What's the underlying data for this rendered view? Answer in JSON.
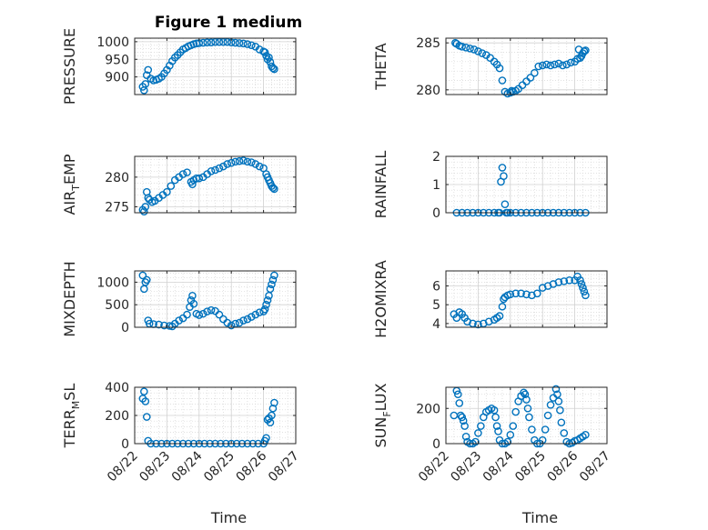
{
  "figure": {
    "title": "Figure 1 medium",
    "marker_color": "#0072BD",
    "background": "#ffffff"
  },
  "chart_data": [
    {
      "type": "scatter",
      "ylabel": "PRESSURE",
      "xlabel": "",
      "xlim": [
        "08/22",
        "08/27"
      ],
      "xticks": [
        "08/22",
        "08/23",
        "08/24",
        "08/25",
        "08/26",
        "08/27"
      ],
      "xticks_visible": false,
      "ylim": [
        850,
        1010
      ],
      "yticks": [
        900,
        950,
        1000
      ],
      "grid": true,
      "x": [
        "08/22 06:00",
        "08/22 07:00",
        "08/22 08:00",
        "08/22 09:00",
        "08/22 10:00",
        "08/22 12:00",
        "08/22 14:00",
        "08/22 16:00",
        "08/22 18:00",
        "08/22 20:00",
        "08/22 22:00",
        "08/23 00:00",
        "08/23 02:00",
        "08/23 04:00",
        "08/23 06:00",
        "08/23 08:00",
        "08/23 10:00",
        "08/23 12:00",
        "08/23 14:00",
        "08/23 16:00",
        "08/23 18:00",
        "08/23 20:00",
        "08/23 22:00",
        "08/24 00:00",
        "08/24 03:00",
        "08/24 06:00",
        "08/24 09:00",
        "08/24 12:00",
        "08/24 15:00",
        "08/24 18:00",
        "08/24 21:00",
        "08/25 00:00",
        "08/25 03:00",
        "08/25 06:00",
        "08/25 09:00",
        "08/25 12:00",
        "08/25 15:00",
        "08/25 18:00",
        "08/25 21:00",
        "08/26 00:00",
        "08/26 01:00",
        "08/26 02:00",
        "08/26 03:00",
        "08/26 04:00",
        "08/26 05:00",
        "08/26 06:00",
        "08/26 07:00",
        "08/26 08:00"
      ],
      "y": [
        872,
        862,
        880,
        905,
        920,
        895,
        890,
        892,
        895,
        900,
        910,
        920,
        932,
        945,
        955,
        962,
        970,
        978,
        982,
        987,
        990,
        993,
        995,
        996,
        997,
        998,
        998,
        999,
        999,
        999,
        999,
        998,
        997,
        996,
        995,
        993,
        990,
        986,
        978,
        972,
        970,
        960,
        950,
        955,
        942,
        930,
        925,
        922
      ]
    },
    {
      "type": "scatter",
      "ylabel": "THETA",
      "xlabel": "",
      "xlim": [
        "08/22",
        "08/27"
      ],
      "xticks": [
        "08/22",
        "08/23",
        "08/24",
        "08/25",
        "08/26",
        "08/27"
      ],
      "xticks_visible": false,
      "ylim": [
        279.5,
        285.5
      ],
      "yticks": [
        280,
        285
      ],
      "grid": true,
      "x": [
        "08/22 07:00",
        "08/22 08:00",
        "08/22 10:00",
        "08/22 12:00",
        "08/22 15:00",
        "08/22 18:00",
        "08/22 21:00",
        "08/23 00:00",
        "08/23 03:00",
        "08/23 06:00",
        "08/23 09:00",
        "08/23 12:00",
        "08/23 14:00",
        "08/23 16:00",
        "08/23 18:00",
        "08/23 20:00",
        "08/23 22:00",
        "08/24 00:00",
        "08/24 01:00",
        "08/24 02:00",
        "08/24 04:00",
        "08/24 06:00",
        "08/24 09:00",
        "08/24 12:00",
        "08/24 15:00",
        "08/24 18:00",
        "08/24 21:00",
        "08/25 00:00",
        "08/25 03:00",
        "08/25 06:00",
        "08/25 09:00",
        "08/25 12:00",
        "08/25 15:00",
        "08/25 18:00",
        "08/25 21:00",
        "08/26 00:00",
        "08/26 02:00",
        "08/26 03:00",
        "08/26 04:00",
        "08/26 05:00",
        "08/26 06:00",
        "08/26 07:00",
        "08/26 08:00"
      ],
      "y": [
        285.0,
        284.9,
        284.7,
        284.6,
        284.5,
        284.4,
        284.3,
        284.1,
        283.9,
        283.7,
        283.4,
        283.0,
        282.7,
        282.3,
        281.0,
        279.8,
        279.6,
        279.7,
        279.9,
        279.8,
        279.9,
        280.1,
        280.5,
        280.9,
        281.3,
        281.8,
        282.5,
        282.6,
        282.7,
        282.6,
        282.7,
        282.8,
        282.6,
        282.7,
        282.9,
        283.0,
        283.3,
        284.3,
        283.4,
        283.6,
        283.9,
        284.1,
        284.2
      ]
    },
    {
      "type": "scatter",
      "ylabel": "AIR_TEMP",
      "xlabel": "",
      "xlim": [
        "08/22",
        "08/27"
      ],
      "xticks": [
        "08/22",
        "08/23",
        "08/24",
        "08/25",
        "08/26",
        "08/27"
      ],
      "xticks_visible": false,
      "ylim": [
        274,
        283.5
      ],
      "yticks": [
        275,
        280
      ],
      "grid": true,
      "x": [
        "08/22 06:00",
        "08/22 07:00",
        "08/22 08:00",
        "08/22 09:00",
        "08/22 10:00",
        "08/22 11:00",
        "08/22 13:00",
        "08/22 15:00",
        "08/22 18:00",
        "08/22 21:00",
        "08/23 00:00",
        "08/23 03:00",
        "08/23 06:00",
        "08/23 09:00",
        "08/23 12:00",
        "08/23 15:00",
        "08/23 18:00",
        "08/23 19:00",
        "08/23 20:00",
        "08/23 22:00",
        "08/24 00:00",
        "08/24 03:00",
        "08/24 06:00",
        "08/24 09:00",
        "08/24 12:00",
        "08/24 15:00",
        "08/24 18:00",
        "08/24 21:00",
        "08/25 00:00",
        "08/25 03:00",
        "08/25 06:00",
        "08/25 09:00",
        "08/25 12:00",
        "08/25 15:00",
        "08/25 18:00",
        "08/25 21:00",
        "08/26 00:00",
        "08/26 02:00",
        "08/26 03:00",
        "08/26 04:00",
        "08/26 05:00",
        "08/26 06:00",
        "08/26 07:00",
        "08/26 08:00"
      ],
      "y": [
        274.5,
        274.2,
        275.0,
        277.5,
        276.5,
        276.2,
        275.8,
        276.0,
        276.5,
        277.0,
        277.5,
        278.5,
        279.5,
        280.0,
        280.5,
        280.8,
        279.2,
        278.8,
        279.5,
        279.8,
        279.8,
        280.0,
        280.5,
        281.0,
        281.2,
        281.5,
        281.8,
        282.2,
        282.4,
        282.6,
        282.7,
        282.8,
        282.6,
        282.5,
        282.2,
        281.8,
        281.5,
        280.5,
        280.0,
        279.5,
        279.0,
        278.5,
        278.2,
        278.0
      ]
    },
    {
      "type": "scatter",
      "ylabel": "RAINFALL",
      "xlabel": "",
      "xlim": [
        "08/22",
        "08/27"
      ],
      "xticks": [
        "08/22",
        "08/23",
        "08/24",
        "08/25",
        "08/26",
        "08/27"
      ],
      "xticks_visible": false,
      "ylim": [
        0,
        2
      ],
      "yticks": [
        0,
        1,
        2
      ],
      "grid": true,
      "x": [
        "08/22 08:00",
        "08/22 12:00",
        "08/22 16:00",
        "08/22 20:00",
        "08/23 00:00",
        "08/23 04:00",
        "08/23 08:00",
        "08/23 12:00",
        "08/23 15:00",
        "08/23 16:00",
        "08/23 17:00",
        "08/23 18:00",
        "08/23 19:00",
        "08/23 20:00",
        "08/23 21:00",
        "08/23 22:00",
        "08/24 00:00",
        "08/24 04:00",
        "08/24 08:00",
        "08/24 12:00",
        "08/24 16:00",
        "08/24 20:00",
        "08/25 00:00",
        "08/25 04:00",
        "08/25 08:00",
        "08/25 12:00",
        "08/25 16:00",
        "08/25 20:00",
        "08/26 00:00",
        "08/26 04:00",
        "08/26 08:00"
      ],
      "y": [
        0,
        0,
        0,
        0,
        0,
        0,
        0,
        0,
        0,
        0,
        1.1,
        1.6,
        1.3,
        0.3,
        0,
        0,
        0,
        0,
        0,
        0,
        0,
        0,
        0,
        0,
        0,
        0,
        0,
        0,
        0,
        0,
        0
      ]
    },
    {
      "type": "scatter",
      "ylabel": "MIXDEPTH",
      "xlabel": "",
      "xlim": [
        "08/22",
        "08/27"
      ],
      "xticks": [
        "08/22",
        "08/23",
        "08/24",
        "08/25",
        "08/26",
        "08/27"
      ],
      "xticks_visible": false,
      "ylim": [
        0,
        1250
      ],
      "yticks": [
        0,
        500,
        1000
      ],
      "grid": true,
      "x": [
        "08/22 06:00",
        "08/22 07:00",
        "08/22 08:00",
        "08/22 09:00",
        "08/22 10:00",
        "08/22 11:00",
        "08/22 14:00",
        "08/22 18:00",
        "08/22 22:00",
        "08/23 02:00",
        "08/23 04:00",
        "08/23 06:00",
        "08/23 09:00",
        "08/23 12:00",
        "08/23 15:00",
        "08/23 17:00",
        "08/23 18:00",
        "08/23 19:00",
        "08/23 20:00",
        "08/23 22:00",
        "08/24 00:00",
        "08/24 03:00",
        "08/24 06:00",
        "08/24 09:00",
        "08/24 12:00",
        "08/24 15:00",
        "08/24 18:00",
        "08/24 21:00",
        "08/25 00:00",
        "08/25 03:00",
        "08/25 06:00",
        "08/25 09:00",
        "08/25 12:00",
        "08/25 15:00",
        "08/25 18:00",
        "08/25 21:00",
        "08/26 00:00",
        "08/26 01:00",
        "08/26 02:00",
        "08/26 03:00",
        "08/26 04:00",
        "08/26 05:00",
        "08/26 06:00",
        "08/26 07:00",
        "08/26 08:00"
      ],
      "y": [
        1150,
        850,
        1000,
        1050,
        150,
        80,
        70,
        60,
        40,
        30,
        20,
        80,
        150,
        200,
        280,
        450,
        600,
        700,
        520,
        300,
        270,
        300,
        350,
        380,
        360,
        280,
        180,
        100,
        40,
        80,
        100,
        150,
        180,
        230,
        280,
        330,
        350,
        400,
        500,
        600,
        700,
        850,
        950,
        1050,
        1150
      ]
    },
    {
      "type": "scatter",
      "ylabel": "H2OMIXRA",
      "xlabel": "",
      "xlim": [
        "08/22",
        "08/27"
      ],
      "xticks": [
        "08/22",
        "08/23",
        "08/24",
        "08/25",
        "08/26",
        "08/27"
      ],
      "xticks_visible": false,
      "ylim": [
        3.8,
        6.8
      ],
      "yticks": [
        4,
        5,
        6
      ],
      "grid": true,
      "x": [
        "08/22 06:00",
        "08/22 08:00",
        "08/22 10:00",
        "08/22 12:00",
        "08/22 14:00",
        "08/22 16:00",
        "08/22 20:00",
        "08/23 00:00",
        "08/23 04:00",
        "08/23 08:00",
        "08/23 12:00",
        "08/23 14:00",
        "08/23 16:00",
        "08/23 18:00",
        "08/23 19:00",
        "08/23 20:00",
        "08/23 22:00",
        "08/24 00:00",
        "08/24 04:00",
        "08/24 08:00",
        "08/24 12:00",
        "08/24 16:00",
        "08/24 20:00",
        "08/25 00:00",
        "08/25 04:00",
        "08/25 08:00",
        "08/25 12:00",
        "08/25 16:00",
        "08/25 20:00",
        "08/26 00:00",
        "08/26 02:00",
        "08/26 04:00",
        "08/26 05:00",
        "08/26 06:00",
        "08/26 07:00",
        "08/26 08:00"
      ],
      "y": [
        4.5,
        4.3,
        4.6,
        4.5,
        4.3,
        4.1,
        4.0,
        3.95,
        4.0,
        4.1,
        4.2,
        4.3,
        4.4,
        4.9,
        5.3,
        5.4,
        5.5,
        5.55,
        5.6,
        5.6,
        5.55,
        5.5,
        5.6,
        5.9,
        6.0,
        6.1,
        6.2,
        6.25,
        6.3,
        6.3,
        6.5,
        6.3,
        6.1,
        5.9,
        5.7,
        5.5
      ]
    },
    {
      "type": "scatter",
      "ylabel": "TERR_MSL",
      "xlabel": "Time",
      "xlim": [
        "08/22",
        "08/27"
      ],
      "xticks": [
        "08/22",
        "08/23",
        "08/24",
        "08/25",
        "08/26",
        "08/27"
      ],
      "xticks_visible": true,
      "ylim": [
        0,
        400
      ],
      "yticks": [
        0,
        200,
        400
      ],
      "grid": true,
      "x": [
        "08/22 06:00",
        "08/22 07:00",
        "08/22 08:00",
        "08/22 09:00",
        "08/22 10:00",
        "08/22 12:00",
        "08/22 16:00",
        "08/22 20:00",
        "08/23 00:00",
        "08/23 04:00",
        "08/23 08:00",
        "08/23 12:00",
        "08/23 16:00",
        "08/23 20:00",
        "08/24 00:00",
        "08/24 04:00",
        "08/24 08:00",
        "08/24 12:00",
        "08/24 16:00",
        "08/24 20:00",
        "08/25 00:00",
        "08/25 04:00",
        "08/25 08:00",
        "08/25 12:00",
        "08/25 16:00",
        "08/25 20:00",
        "08/26 00:00",
        "08/26 01:00",
        "08/26 02:00",
        "08/26 03:00",
        "08/26 04:00",
        "08/26 05:00",
        "08/26 06:00",
        "08/26 07:00",
        "08/26 08:00"
      ],
      "y": [
        320,
        370,
        300,
        190,
        20,
        0,
        0,
        0,
        0,
        0,
        0,
        0,
        0,
        0,
        0,
        0,
        0,
        0,
        0,
        0,
        0,
        0,
        0,
        0,
        0,
        0,
        0,
        20,
        40,
        170,
        180,
        150,
        200,
        250,
        290
      ]
    },
    {
      "type": "scatter",
      "ylabel": "SUN_FLUX",
      "xlabel": "Time",
      "xlim": [
        "08/22",
        "08/27"
      ],
      "xticks": [
        "08/22",
        "08/23",
        "08/24",
        "08/25",
        "08/26",
        "08/27"
      ],
      "xticks_visible": true,
      "ylim": [
        0,
        320
      ],
      "yticks": [
        0,
        200
      ],
      "grid": true,
      "x": [
        "08/22 06:00",
        "08/22 08:00",
        "08/22 09:00",
        "08/22 10:00",
        "08/22 11:00",
        "08/22 12:00",
        "08/22 13:00",
        "08/22 14:00",
        "08/22 15:00",
        "08/22 16:00",
        "08/22 18:00",
        "08/22 20:00",
        "08/22 22:00",
        "08/23 00:00",
        "08/23 02:00",
        "08/23 04:00",
        "08/23 06:00",
        "08/23 08:00",
        "08/23 10:00",
        "08/23 12:00",
        "08/23 13:00",
        "08/23 14:00",
        "08/23 15:00",
        "08/23 16:00",
        "08/23 18:00",
        "08/23 20:00",
        "08/23 22:00",
        "08/24 00:00",
        "08/24 02:00",
        "08/24 04:00",
        "08/24 06:00",
        "08/24 08:00",
        "08/24 10:00",
        "08/24 11:00",
        "08/24 12:00",
        "08/24 13:00",
        "08/24 14:00",
        "08/24 16:00",
        "08/24 18:00",
        "08/24 20:00",
        "08/24 22:00",
        "08/25 00:00",
        "08/25 02:00",
        "08/25 04:00",
        "08/25 06:00",
        "08/25 08:00",
        "08/25 10:00",
        "08/25 11:00",
        "08/25 12:00",
        "08/25 13:00",
        "08/25 14:00",
        "08/25 16:00",
        "08/25 18:00",
        "08/25 20:00",
        "08/25 22:00",
        "08/26 00:00",
        "08/26 02:00",
        "08/26 04:00",
        "08/26 06:00",
        "08/26 08:00"
      ],
      "y": [
        160,
        300,
        280,
        230,
        160,
        150,
        130,
        100,
        40,
        10,
        0,
        0,
        10,
        60,
        100,
        150,
        180,
        190,
        200,
        190,
        150,
        100,
        70,
        20,
        0,
        0,
        10,
        50,
        100,
        180,
        240,
        270,
        290,
        280,
        250,
        200,
        150,
        80,
        20,
        0,
        0,
        20,
        80,
        160,
        220,
        260,
        310,
        280,
        240,
        190,
        120,
        60,
        10,
        0,
        5,
        15,
        20,
        30,
        40,
        50
      ]
    }
  ]
}
